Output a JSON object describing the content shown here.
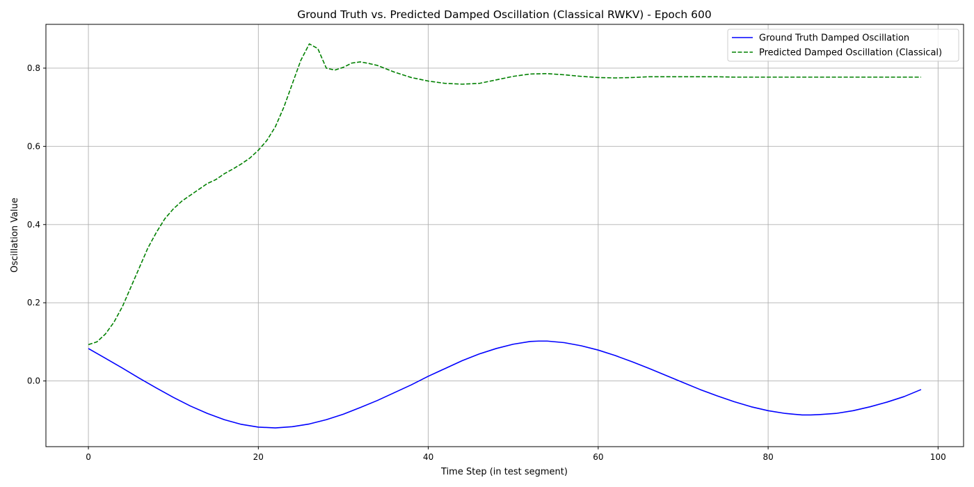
{
  "chart_data": {
    "type": "line",
    "title": "Ground Truth vs. Predicted Damped Oscillation (Classical RWKV) - Epoch 600",
    "xlabel": "Time Step (in test segment)",
    "ylabel": "Oscillation Value",
    "xlim": [
      -5,
      103
    ],
    "ylim": [
      -0.168,
      0.912
    ],
    "xticks": [
      0,
      20,
      40,
      60,
      80,
      100
    ],
    "yticks": [
      0.0,
      0.2,
      0.4,
      0.6,
      0.8
    ],
    "xtick_labels": [
      "0",
      "20",
      "40",
      "60",
      "80",
      "100"
    ],
    "ytick_labels": [
      "0.0",
      "0.2",
      "0.4",
      "0.6",
      "0.8"
    ],
    "grid": true,
    "legend_position": "top-right",
    "series": [
      {
        "name": "Ground Truth Damped Oscillation",
        "color": "#0000ff",
        "style": "solid",
        "x": [
          0,
          2,
          4,
          6,
          8,
          10,
          12,
          14,
          16,
          18,
          20,
          22,
          24,
          26,
          28,
          30,
          32,
          34,
          36,
          38,
          40,
          42,
          44,
          46,
          48,
          50,
          52,
          53,
          54,
          56,
          58,
          60,
          62,
          64,
          66,
          68,
          70,
          72,
          74,
          76,
          78,
          80,
          82,
          84,
          85,
          86,
          88,
          90,
          92,
          94,
          96,
          98
        ],
        "y": [
          0.083,
          0.058,
          0.033,
          0.007,
          -0.018,
          -0.042,
          -0.064,
          -0.083,
          -0.099,
          -0.111,
          -0.118,
          -0.12,
          -0.117,
          -0.11,
          -0.099,
          -0.085,
          -0.068,
          -0.05,
          -0.03,
          -0.01,
          0.012,
          0.032,
          0.052,
          0.069,
          0.083,
          0.094,
          0.101,
          0.102,
          0.102,
          0.098,
          0.09,
          0.079,
          0.065,
          0.049,
          0.032,
          0.014,
          -0.004,
          -0.022,
          -0.038,
          -0.053,
          -0.066,
          -0.076,
          -0.083,
          -0.087,
          -0.087,
          -0.086,
          -0.083,
          -0.076,
          -0.066,
          -0.054,
          -0.04,
          -0.022
        ]
      },
      {
        "name": "Predicted Damped Oscillation (Classical)",
        "color": "#008000",
        "style": "dashed",
        "x": [
          0,
          1,
          2,
          3,
          4,
          5,
          6,
          7,
          8,
          9,
          10,
          11,
          12,
          13,
          14,
          15,
          16,
          17,
          18,
          19,
          20,
          21,
          22,
          23,
          24,
          25,
          26,
          27,
          28,
          29,
          30,
          31,
          32,
          33,
          34,
          36,
          38,
          40,
          42,
          44,
          46,
          48,
          50,
          52,
          54,
          56,
          58,
          60,
          62,
          64,
          66,
          68,
          70,
          72,
          74,
          76,
          78,
          80,
          82,
          84,
          86,
          88,
          90,
          92,
          94,
          96,
          98
        ],
        "y": [
          0.093,
          0.1,
          0.12,
          0.15,
          0.19,
          0.24,
          0.29,
          0.34,
          0.38,
          0.415,
          0.44,
          0.46,
          0.475,
          0.49,
          0.505,
          0.515,
          0.53,
          0.542,
          0.555,
          0.57,
          0.59,
          0.615,
          0.65,
          0.7,
          0.76,
          0.82,
          0.862,
          0.85,
          0.8,
          0.795,
          0.802,
          0.813,
          0.816,
          0.812,
          0.807,
          0.79,
          0.776,
          0.767,
          0.761,
          0.759,
          0.761,
          0.77,
          0.779,
          0.785,
          0.786,
          0.783,
          0.779,
          0.776,
          0.775,
          0.776,
          0.778,
          0.778,
          0.778,
          0.778,
          0.778,
          0.777,
          0.777,
          0.777,
          0.777,
          0.777,
          0.777,
          0.777,
          0.777,
          0.777,
          0.777,
          0.777,
          0.777
        ]
      }
    ]
  }
}
